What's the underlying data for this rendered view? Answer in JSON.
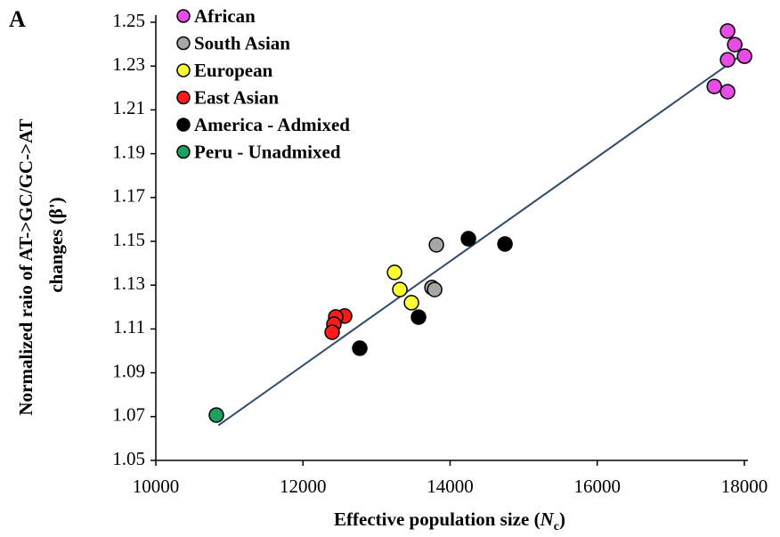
{
  "chart_data": {
    "type": "scatter",
    "panel_label": "A",
    "xlabel": [
      "Effective population size (",
      "N",
      "c",
      ")"
    ],
    "ylabel": [
      "Normalized raio of AT->GC/GC->AT",
      "changes (β",
      "')"
    ],
    "xlim": [
      10000,
      18000
    ],
    "ylim": [
      1.05,
      1.25
    ],
    "xticks": [
      10000,
      12000,
      14000,
      16000,
      18000
    ],
    "yticks": [
      1.05,
      1.07,
      1.09,
      1.11,
      1.13,
      1.15,
      1.17,
      1.19,
      1.21,
      1.23,
      1.25
    ],
    "series": [
      {
        "name": "African",
        "color": "#e64ce6",
        "x": [
          17772,
          17869,
          18002,
          17772,
          17591,
          17772
        ],
        "values": [
          1.246,
          1.2398,
          1.2345,
          1.2329,
          1.2207,
          1.2183
        ]
      },
      {
        "name": "South Asian",
        "color": "#a6a6a6",
        "x": [
          13814,
          13753,
          13790
        ],
        "values": [
          1.1484,
          1.1289,
          1.128
        ]
      },
      {
        "name": "European",
        "color": "#ffff33",
        "x": [
          13245,
          13317,
          13475
        ],
        "values": [
          1.1358,
          1.128,
          1.122
        ]
      },
      {
        "name": "East Asian",
        "color": "#ff1a1a",
        "x": [
          12567,
          12446,
          12421,
          12397
        ],
        "values": [
          1.1159,
          1.1155,
          1.1122,
          1.1085
        ]
      },
      {
        "name": "America - Admixed",
        "color": "#000000",
        "x": [
          12772,
          13571,
          14249,
          14746
        ],
        "values": [
          1.1012,
          1.1154,
          1.1512,
          1.1488
        ]
      },
      {
        "name": "Peru - Unadmixed",
        "color": "#1fa060",
        "x": [
          10823
        ],
        "values": [
          1.0707
        ]
      }
    ],
    "trendline": {
      "color": "#2e4a6e",
      "x": [
        10850,
        18000
      ],
      "values": [
        1.066,
        1.236
      ]
    }
  }
}
